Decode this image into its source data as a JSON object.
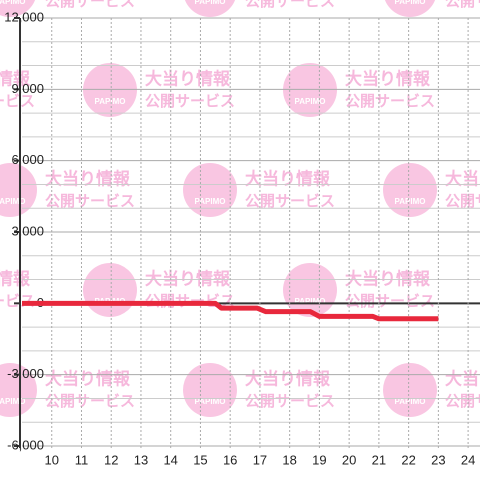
{
  "chart_data": {
    "type": "line",
    "x": [
      9,
      15.5,
      15.7,
      16.9,
      17.2,
      18.7,
      19,
      20.8,
      21,
      23
    ],
    "series": [
      {
        "color": "#e8283c",
        "values": [
          0,
          0,
          -200,
          -200,
          -350,
          -350,
          -550,
          -550,
          -650,
          -650
        ]
      }
    ],
    "xlim": [
      9,
      24.4
    ],
    "xticks": [
      10,
      11,
      12,
      13,
      14,
      15,
      16,
      17,
      18,
      19,
      20,
      21,
      22,
      23,
      24
    ],
    "ylim": [
      -6000,
      12000
    ],
    "yticks": [
      {
        "value": 12000,
        "label": "12,000"
      },
      {
        "value": 9000,
        "label": "9,000"
      },
      {
        "value": 6000,
        "label": "6,000"
      },
      {
        "value": 3000,
        "label": "3,000"
      },
      0,
      {
        "value": -3000,
        "label": "-3,000"
      },
      {
        "value": -6000,
        "label": "-6,000"
      }
    ],
    "y_minor_ticks": [
      11000,
      10000,
      8000,
      7000,
      5000,
      4000,
      2000,
      1000,
      -1000,
      -2000,
      -4000,
      -5000
    ],
    "grid": true,
    "watermark": {
      "logo": "PAPIMO",
      "line1": "大当り情報",
      "line2": "公開サービス",
      "color": "#f9c6e2"
    }
  }
}
